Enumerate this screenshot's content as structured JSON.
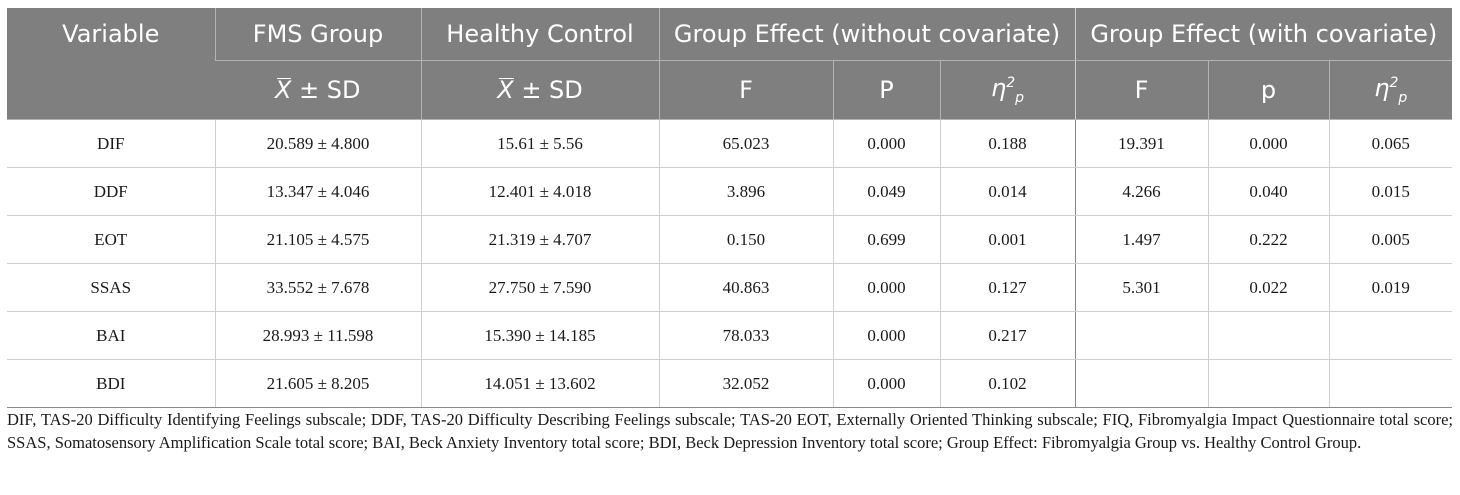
{
  "table": {
    "headers_top": {
      "variable": "Variable",
      "fms": "FMS Group",
      "control": "Healthy Control",
      "effect_without": "Group Effect (without covariate)",
      "effect_with": "Group Effect (with covariate)"
    },
    "headers_sub": {
      "fms_stat": "± SD",
      "control_stat": "± SD",
      "f1": "F",
      "p1": "P",
      "eta1_base": "η",
      "eta1_sup": "2",
      "eta1_sub": "p",
      "f2": "F",
      "p2": "p",
      "eta2_base": "η",
      "eta2_sup": "2",
      "eta2_sub": "p",
      "xbar_symbol": "X"
    },
    "rows": [
      {
        "variable": "DIF",
        "fms": "20.589 ± 4.800",
        "control": "15.61 ± 5.56",
        "f1": "65.023",
        "p1": "0.000",
        "eta1": "0.188",
        "f2": "19.391",
        "p2": "0.000",
        "eta2": "0.065"
      },
      {
        "variable": "DDF",
        "fms": "13.347 ± 4.046",
        "control": "12.401 ± 4.018",
        "f1": "3.896",
        "p1": "0.049",
        "eta1": "0.014",
        "f2": "4.266",
        "p2": "0.040",
        "eta2": "0.015"
      },
      {
        "variable": "EOT",
        "fms": "21.105 ± 4.575",
        "control": "21.319 ± 4.707",
        "f1": "0.150",
        "p1": "0.699",
        "eta1": "0.001",
        "f2": "1.497",
        "p2": "0.222",
        "eta2": "0.005"
      },
      {
        "variable": "SSAS",
        "fms": "33.552 ± 7.678",
        "control": "27.750 ± 7.590",
        "f1": "40.863",
        "p1": "0.000",
        "eta1": "0.127",
        "f2": "5.301",
        "p2": "0.022",
        "eta2": "0.019"
      },
      {
        "variable": "BAI",
        "fms": "28.993 ± 11.598",
        "control": "15.390 ± 14.185",
        "f1": "78.033",
        "p1": "0.000",
        "eta1": "0.217",
        "f2": "",
        "p2": "",
        "eta2": ""
      },
      {
        "variable": "BDI",
        "fms": "21.605 ± 8.205",
        "control": "14.051 ± 13.602",
        "f1": "32.052",
        "p1": "0.000",
        "eta1": "0.102",
        "f2": "",
        "p2": "",
        "eta2": ""
      }
    ]
  },
  "footnote": "DIF, TAS-20 Difficulty Identifying Feelings subscale; DDF, TAS-20 Difficulty Describing Feelings subscale; TAS-20 EOT, Externally Oriented Thinking subscale; FIQ, Fibromyalgia Impact Questionnaire total score; SSAS, Somatosensory Amplification Scale total score; BAI, Beck Anxiety Inventory total score; BDI, Beck Depression Inventory total score; Group Effect: Fibromyalgia Group vs. Healthy Control Group."
}
